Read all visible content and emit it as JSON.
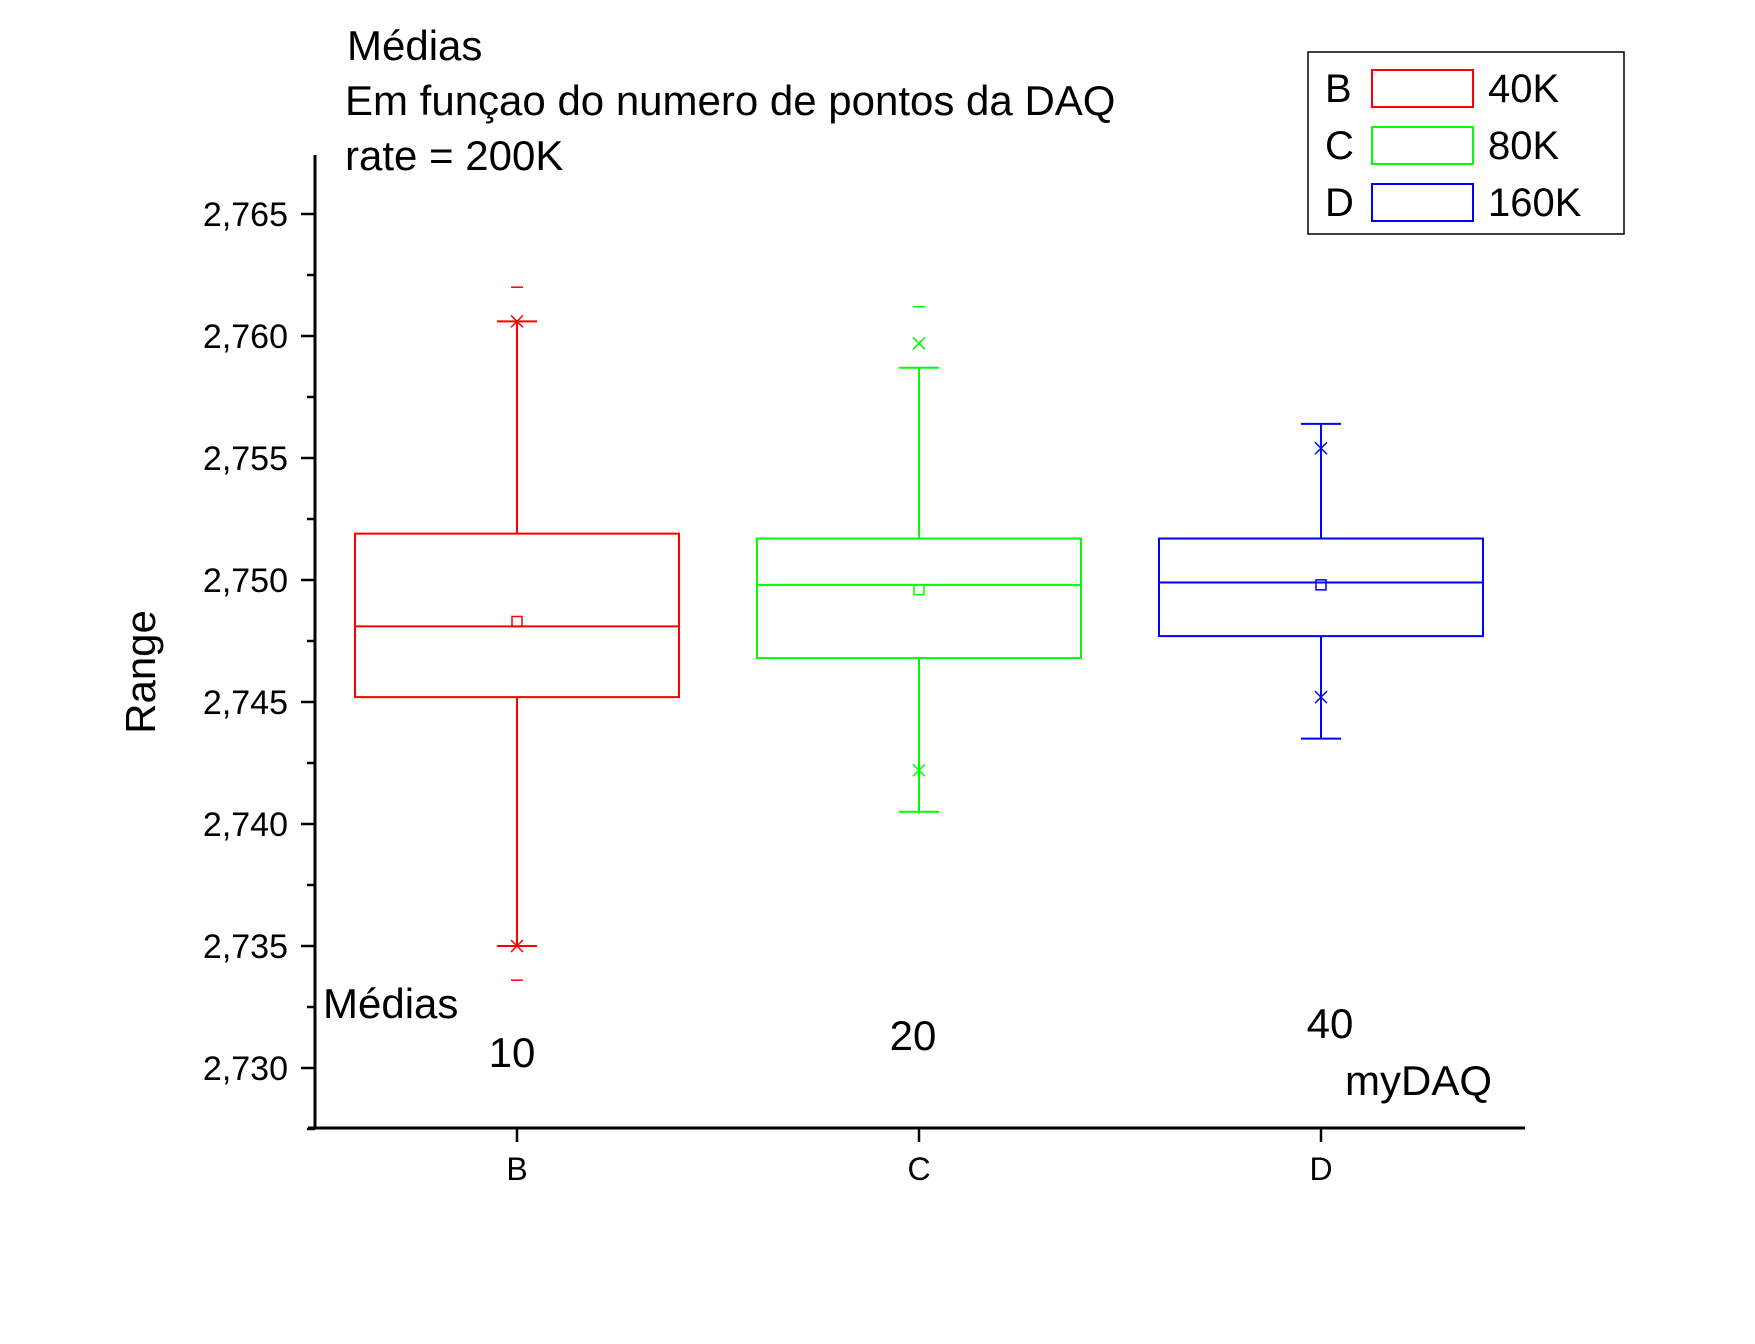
{
  "chart_data": {
    "type": "box",
    "title_lines": [
      "Médias",
      "Em funçao do numero de pontos da DAQ",
      "rate = 200K"
    ],
    "xlabel": "",
    "ylabel": "Range",
    "ylim": [
      2.7275,
      2.7675
    ],
    "yticks": [
      2.73,
      2.735,
      2.74,
      2.745,
      2.75,
      2.755,
      2.76,
      2.765
    ],
    "ytick_labels": [
      "2,730",
      "2,735",
      "2,740",
      "2,745",
      "2,750",
      "2,755",
      "2,760",
      "2,765"
    ],
    "categories": [
      "B",
      "C",
      "D"
    ],
    "series": [
      {
        "name": "40K",
        "category": "B",
        "color": "#ff0000",
        "min": 2.7336,
        "p1": 2.735,
        "whisker_low": 2.735,
        "q1": 2.7452,
        "median": 2.7481,
        "mean": 2.7483,
        "q3": 2.7519,
        "whisker_high": 2.7606,
        "p99": 2.7606,
        "max": 2.762
      },
      {
        "name": "80K",
        "category": "C",
        "color": "#00ff00",
        "min": null,
        "p1": 2.7422,
        "whisker_low": 2.7405,
        "q1": 2.7468,
        "median": 2.7498,
        "mean": 2.7496,
        "q3": 2.7517,
        "whisker_high": 2.7587,
        "p99": 2.7597,
        "max": 2.7612
      },
      {
        "name": "160K",
        "category": "D",
        "color": "#0000ff",
        "min": null,
        "p1": 2.7452,
        "whisker_low": 2.7435,
        "q1": 2.7477,
        "median": 2.7499,
        "mean": 2.7498,
        "q3": 2.7517,
        "whisker_high": 2.7564,
        "p99": 2.7554,
        "max": null
      }
    ],
    "legend": {
      "placement": "top-right",
      "entries": [
        {
          "key": "B",
          "label": "40K",
          "color": "#ff0000"
        },
        {
          "key": "C",
          "label": "80K",
          "color": "#00ff00"
        },
        {
          "key": "D",
          "label": "160K",
          "color": "#0000ff"
        }
      ]
    },
    "annotations": {
      "medias_label": "Médias",
      "counts": [
        "10",
        "20",
        "40"
      ],
      "device": "myDAQ"
    }
  }
}
